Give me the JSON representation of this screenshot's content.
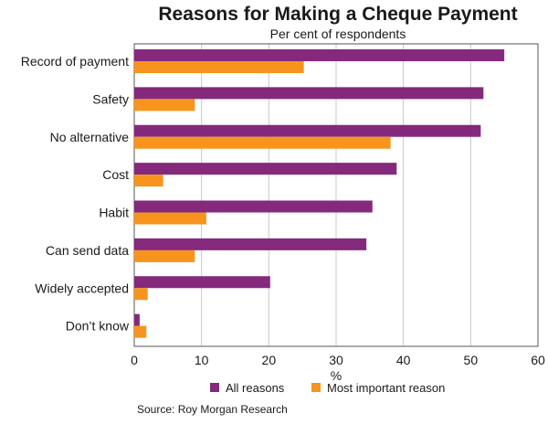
{
  "chart_data": {
    "type": "bar",
    "orientation": "horizontal",
    "title": "Reasons for Making a Cheque Payment",
    "subtitle": "Per cent of respondents",
    "xlabel": "%",
    "xlim": [
      0,
      60
    ],
    "xticks": [
      "0",
      "10",
      "20",
      "30",
      "40",
      "50",
      "60"
    ],
    "grid": true,
    "legend_position": "bottom",
    "categories": [
      "Record of payment",
      "Safety",
      "No alternative",
      "Cost",
      "Habit",
      "Can send data",
      "Widely accepted",
      "Don’t know"
    ],
    "series": [
      {
        "name": "All reasons",
        "color": "#85297d",
        "values": [
          55.0,
          51.9,
          51.5,
          39.0,
          35.4,
          34.5,
          20.2,
          0.8
        ]
      },
      {
        "name": "Most important reason",
        "color": "#f7941d",
        "values": [
          25.2,
          9.0,
          38.1,
          4.3,
          10.7,
          9.0,
          2.0,
          1.8
        ]
      }
    ],
    "source": "Source: Roy Morgan Research"
  }
}
